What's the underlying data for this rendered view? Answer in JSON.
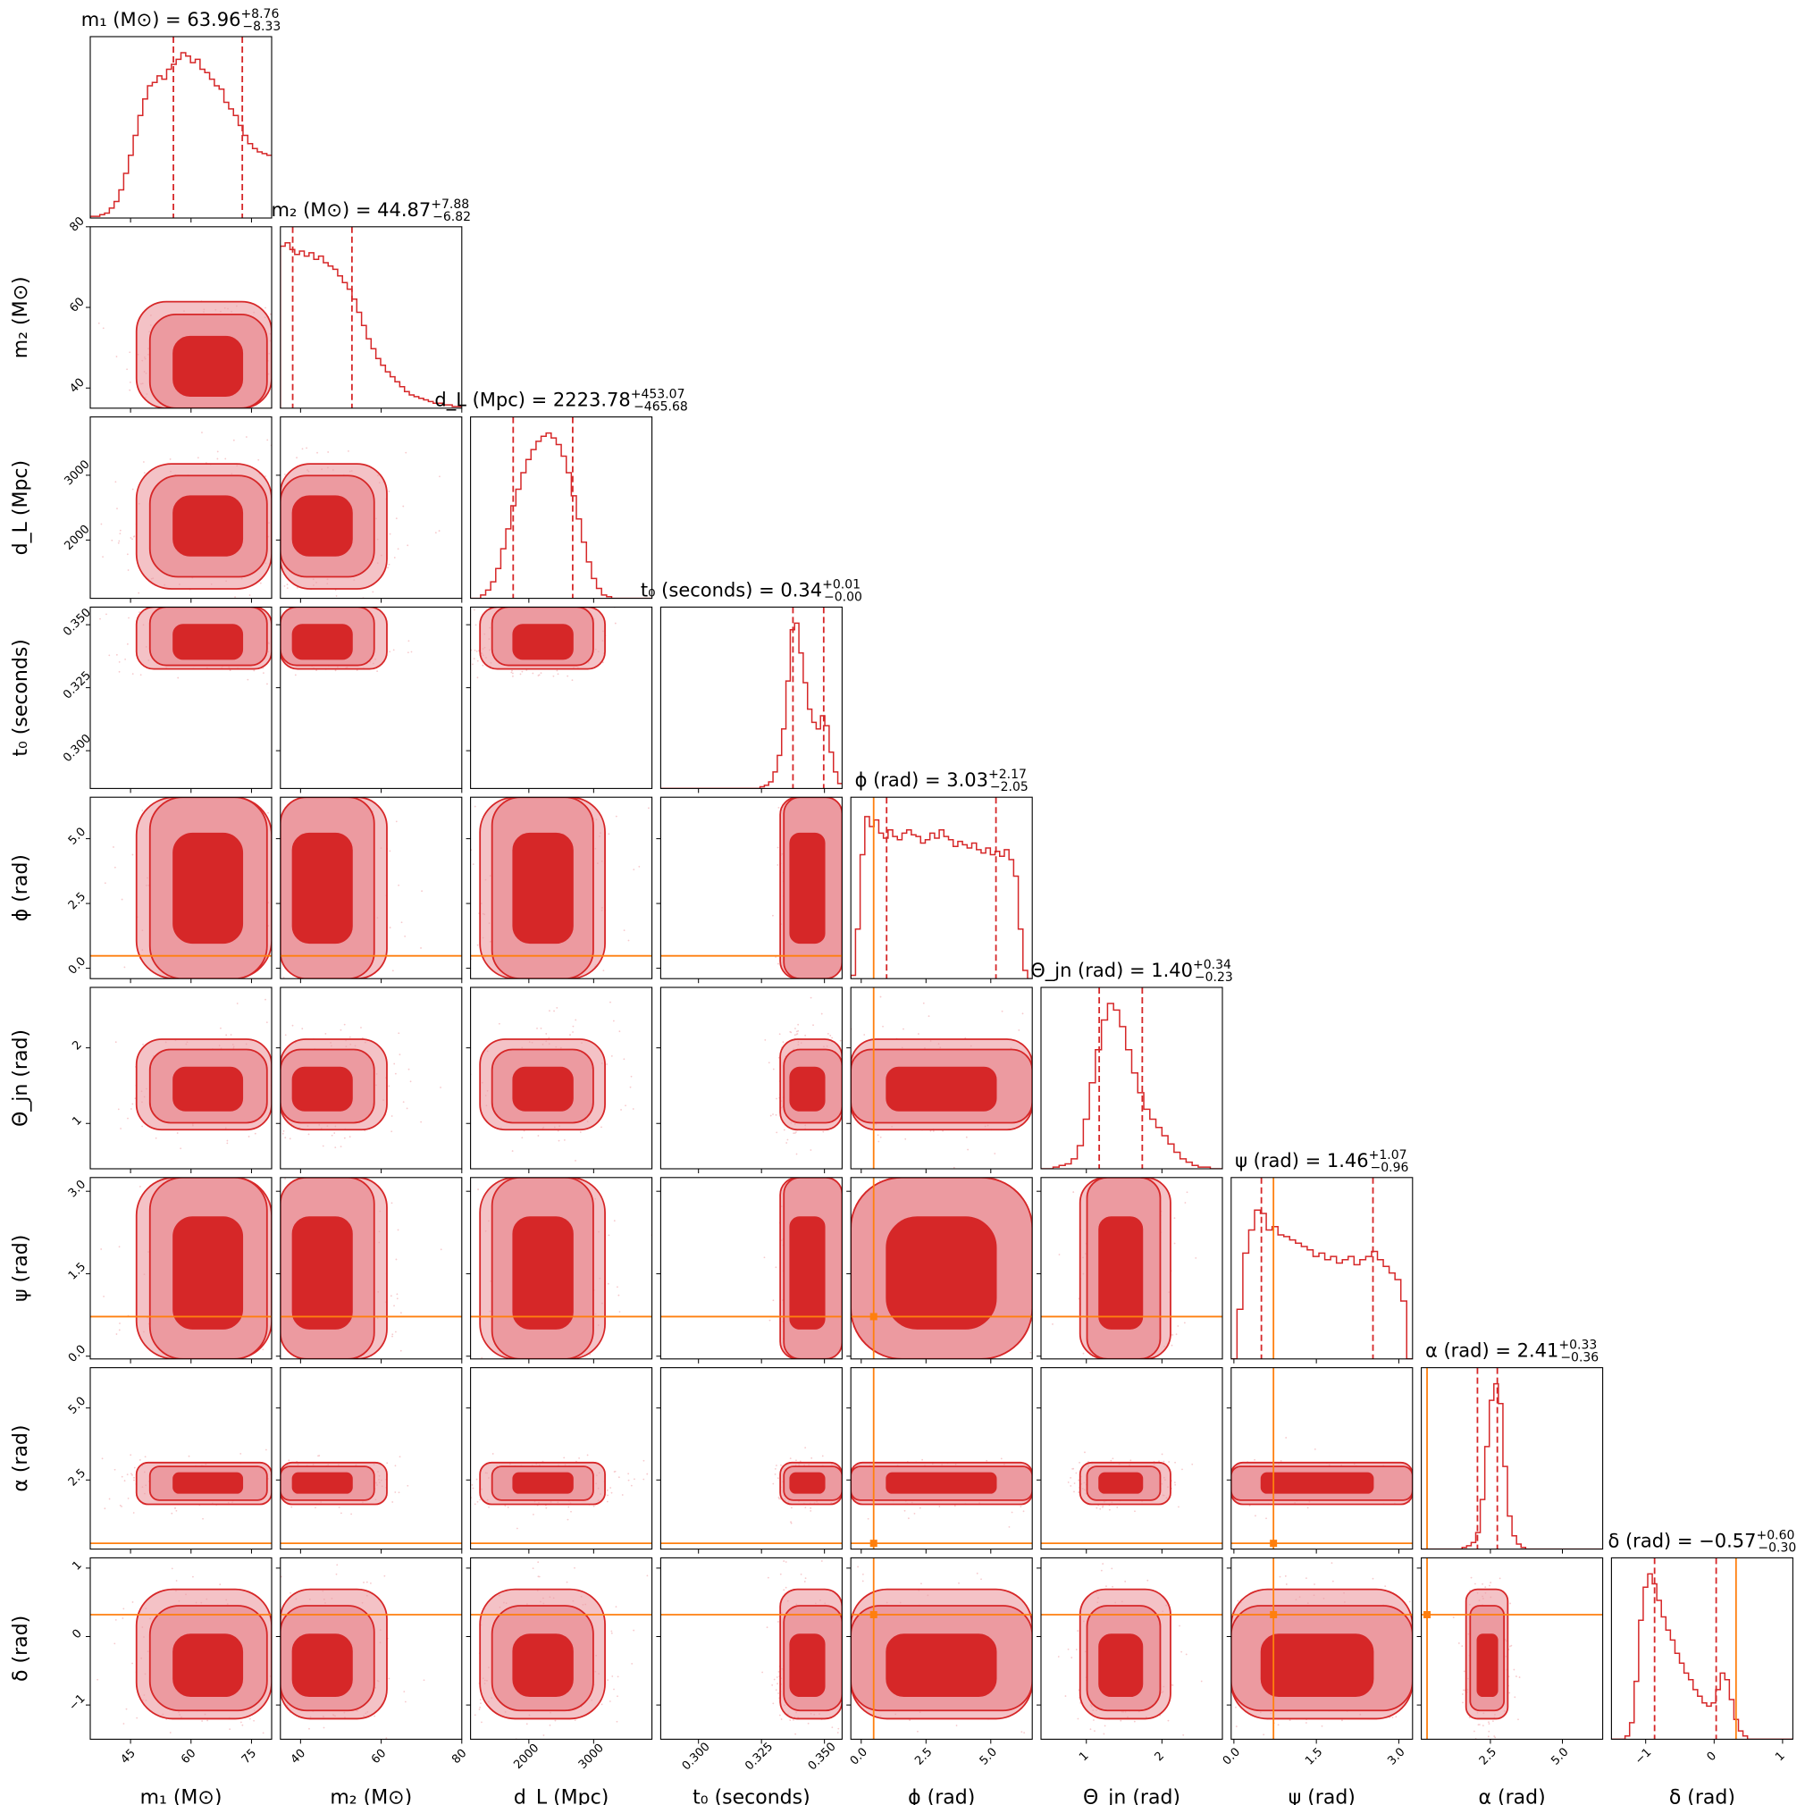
{
  "chart_data": {
    "type": "corner",
    "colors": {
      "posterior": "#d62728",
      "posterior_light": "#ec9aa0",
      "posterior_faint": "#f6c9cc",
      "truth": "#ff7f0e"
    },
    "params": [
      {
        "key": "m1",
        "label": "m₁ (M⊙)",
        "title": "m₁ (M⊙) = 63.96",
        "median": 63.96,
        "plus": "+8.76",
        "minus": "−8.33",
        "range": [
          35,
          80
        ],
        "ticks": [
          45,
          60,
          75
        ],
        "tick_labels": [
          "45",
          "60",
          "75"
        ],
        "q16": 55.63,
        "q84": 72.72,
        "truth": null,
        "dist": "hist_m1"
      },
      {
        "key": "m2",
        "label": "m₂ (M⊙)",
        "title": "m₂ (M⊙) = 44.87",
        "median": 44.87,
        "plus": "+7.88",
        "minus": "−6.82",
        "range": [
          35,
          80
        ],
        "ticks": [
          40,
          60,
          80
        ],
        "tick_labels": [
          "40",
          "60",
          "80"
        ],
        "q16": 38.05,
        "q84": 52.75,
        "truth": null,
        "dist": "hist_m2"
      },
      {
        "key": "dL",
        "label": "d_L (Mpc)",
        "title": "d_L (Mpc) = 2223.78",
        "median": 2223.78,
        "plus": "+453.07",
        "minus": "−465.68",
        "range": [
          1100,
          3900
        ],
        "ticks": [
          2000,
          3000
        ],
        "tick_labels": [
          "2000",
          "3000"
        ],
        "q16": 1758.1,
        "q84": 2676.85,
        "truth": null,
        "dist": "hist_dL"
      },
      {
        "key": "t0",
        "label": "t₀ (seconds)",
        "title": "t₀ (seconds) = 0.34",
        "median": 0.34,
        "plus": "+0.01",
        "minus": "−0.00",
        "range": [
          0.285,
          0.357
        ],
        "ticks": [
          0.3,
          0.325,
          0.35
        ],
        "tick_labels": [
          "0.300",
          "0.325",
          "0.350"
        ],
        "q16": 0.3375,
        "q84": 0.3497,
        "truth": null,
        "dist": "hist_t0"
      },
      {
        "key": "phi",
        "label": "ϕ (rad)",
        "title": "ϕ (rad) = 3.03",
        "median": 3.03,
        "plus": "+2.17",
        "minus": "−2.05",
        "range": [
          -0.4,
          6.6
        ],
        "ticks": [
          0,
          2.5,
          5
        ],
        "tick_labels": [
          "0.0",
          "2.5",
          "5.0"
        ],
        "q16": 0.98,
        "q84": 5.2,
        "truth": 0.48,
        "dist": "hist_phi"
      },
      {
        "key": "theta",
        "label": "Θ_jn (rad)",
        "title": "Θ_jn (rad) = 1.40",
        "median": 1.4,
        "plus": "+0.34",
        "minus": "−0.23",
        "range": [
          0.4,
          2.8
        ],
        "ticks": [
          1,
          2
        ],
        "tick_labels": [
          "1",
          "2"
        ],
        "q16": 1.17,
        "q84": 1.74,
        "truth": null,
        "dist": "hist_theta"
      },
      {
        "key": "psi",
        "label": "ψ (rad)",
        "title": "ψ (rad) = 1.46",
        "median": 1.46,
        "plus": "+1.07",
        "minus": "−0.96",
        "range": [
          -0.05,
          3.25
        ],
        "ticks": [
          0,
          1.5,
          3
        ],
        "tick_labels": [
          "0.0",
          "1.5",
          "3.0"
        ],
        "q16": 0.5,
        "q84": 2.53,
        "truth": 0.72,
        "dist": "hist_psi"
      },
      {
        "key": "alpha",
        "label": "α (rad)",
        "title": "α (rad) = 2.41",
        "median": 2.41,
        "plus": "+0.33",
        "minus": "−0.36",
        "range": [
          0.1,
          6.4
        ],
        "ticks": [
          2.5,
          5
        ],
        "tick_labels": [
          "2.5",
          "5.0"
        ],
        "q16": 2.05,
        "q84": 2.74,
        "truth": 0.3,
        "dist": "hist_alpha"
      },
      {
        "key": "delta",
        "label": "δ (rad)",
        "title": "δ (rad) = −0.57",
        "median": -0.57,
        "plus": "+0.60",
        "minus": "−0.30",
        "range": [
          -1.5,
          1.15
        ],
        "ticks": [
          -1,
          0,
          1
        ],
        "tick_labels": [
          "−1",
          "0",
          "1"
        ],
        "q16": -0.87,
        "q84": 0.03,
        "truth": 0.32,
        "dist": "hist_delta"
      }
    ],
    "hist_shapes": {
      "hist_m1": [
        0.01,
        0.01,
        0.02,
        0.03,
        0.06,
        0.1,
        0.17,
        0.27,
        0.38,
        0.5,
        0.62,
        0.72,
        0.8,
        0.82,
        0.86,
        0.84,
        0.9,
        0.93,
        0.96,
        1.0,
        0.98,
        0.94,
        0.96,
        0.9,
        0.88,
        0.84,
        0.8,
        0.78,
        0.7,
        0.66,
        0.62,
        0.56,
        0.5,
        0.45,
        0.42,
        0.4,
        0.39,
        0.38
      ],
      "hist_m2": [
        0.98,
        1.0,
        0.96,
        0.93,
        0.95,
        0.92,
        0.94,
        0.9,
        0.92,
        0.88,
        0.86,
        0.84,
        0.8,
        0.76,
        0.72,
        0.66,
        0.58,
        0.5,
        0.42,
        0.36,
        0.3,
        0.26,
        0.22,
        0.19,
        0.16,
        0.13,
        0.1,
        0.08,
        0.07,
        0.06,
        0.05,
        0.04,
        0.03,
        0.03,
        0.02,
        0.02,
        0.01,
        0.01
      ],
      "hist_dL": [
        0.0,
        0.0,
        0.02,
        0.05,
        0.1,
        0.18,
        0.3,
        0.42,
        0.56,
        0.66,
        0.76,
        0.84,
        0.9,
        0.95,
        0.98,
        1.0,
        0.97,
        0.93,
        0.86,
        0.76,
        0.62,
        0.48,
        0.34,
        0.22,
        0.12,
        0.06,
        0.02,
        0.01,
        0.0,
        0.0,
        0.0,
        0.0,
        0.0,
        0.0,
        0.0,
        0.0
      ],
      "hist_t0": [
        0.0,
        0.0,
        0.0,
        0.0,
        0.0,
        0.0,
        0.0,
        0.0,
        0.0,
        0.0,
        0.0,
        0.0,
        0.0,
        0.0,
        0.0,
        0.0,
        0.0,
        0.0,
        0.0,
        0.0,
        0.0,
        0.0,
        0.0,
        0.01,
        0.02,
        0.04,
        0.1,
        0.2,
        0.36,
        0.65,
        0.96,
        1.0,
        0.82,
        0.64,
        0.48,
        0.4,
        0.36,
        0.44,
        0.38,
        0.22,
        0.1,
        0.03
      ],
      "hist_phi": [
        0.02,
        0.3,
        0.75,
        0.98,
        0.92,
        0.96,
        0.88,
        0.85,
        0.9,
        0.86,
        0.84,
        0.88,
        0.9,
        0.87,
        0.86,
        0.82,
        0.84,
        0.88,
        0.85,
        0.9,
        0.86,
        0.84,
        0.8,
        0.83,
        0.81,
        0.79,
        0.82,
        0.78,
        0.76,
        0.79,
        0.75,
        0.77,
        0.74,
        0.78,
        0.72,
        0.62,
        0.3,
        0.05,
        0.0
      ],
      "hist_theta": [
        0.0,
        0.0,
        0.01,
        0.02,
        0.03,
        0.06,
        0.14,
        0.3,
        0.52,
        0.72,
        0.9,
        1.0,
        0.96,
        0.86,
        0.72,
        0.58,
        0.46,
        0.36,
        0.3,
        0.25,
        0.2,
        0.15,
        0.1,
        0.06,
        0.04,
        0.02,
        0.01,
        0.01,
        0.0,
        0.0
      ],
      "hist_psi": [
        0.0,
        0.3,
        0.64,
        0.78,
        0.9,
        0.88,
        0.78,
        0.8,
        0.75,
        0.74,
        0.72,
        0.7,
        0.68,
        0.66,
        0.62,
        0.64,
        0.6,
        0.62,
        0.58,
        0.6,
        0.62,
        0.57,
        0.6,
        0.62,
        0.65,
        0.6,
        0.56,
        0.52,
        0.48,
        0.35,
        0.0
      ],
      "hist_alpha": [
        0.0,
        0.0,
        0.0,
        0.0,
        0.0,
        0.0,
        0.0,
        0.0,
        0.0,
        0.01,
        0.02,
        0.04,
        0.1,
        0.3,
        0.62,
        0.9,
        1.0,
        0.88,
        0.5,
        0.2,
        0.08,
        0.03,
        0.01,
        0.0,
        0.0,
        0.0,
        0.0,
        0.0,
        0.0,
        0.0,
        0.0,
        0.0,
        0.0,
        0.0,
        0.0,
        0.0,
        0.0,
        0.0,
        0.0,
        0.0
      ],
      "hist_delta": [
        0.0,
        0.0,
        0.0,
        0.02,
        0.1,
        0.35,
        0.72,
        0.92,
        1.0,
        0.94,
        0.84,
        0.74,
        0.66,
        0.6,
        0.52,
        0.46,
        0.4,
        0.36,
        0.3,
        0.26,
        0.22,
        0.2,
        0.22,
        0.3,
        0.4,
        0.36,
        0.24,
        0.12,
        0.05,
        0.02,
        0.0,
        0.0,
        0.0,
        0.0,
        0.0,
        0.0,
        0.0,
        0.0,
        0.0,
        0.0
      ]
    }
  }
}
